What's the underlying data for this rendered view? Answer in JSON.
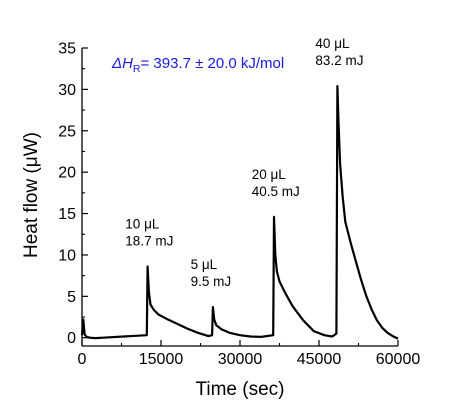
{
  "chart_data": {
    "type": "line",
    "xlabel": "Time (sec)",
    "ylabel": "Heat flow (μW)",
    "xlim": [
      0,
      60000
    ],
    "ylim": [
      -1,
      35
    ],
    "xticks": [
      0,
      15000,
      30000,
      45000,
      60000
    ],
    "yticks": [
      0,
      5,
      10,
      15,
      20,
      25,
      30,
      35
    ],
    "grid": false,
    "legend": "none",
    "series": [
      {
        "color": "#000000",
        "x": [
          0,
          250,
          500,
          900,
          1500,
          2500,
          4000,
          12300,
          12450,
          12700,
          13000,
          13600,
          14500,
          16000,
          18000,
          20000,
          22000,
          24000,
          24700,
          24850,
          25100,
          25500,
          26500,
          28000,
          30000,
          32000,
          34000,
          36300,
          36450,
          36700,
          37000,
          37500,
          38500,
          40000,
          42000,
          44000,
          46000,
          47500,
          48300,
          48500,
          48700,
          49000,
          49500,
          50000,
          51000,
          52000,
          53000,
          54000,
          55000,
          56000,
          57000,
          58000,
          59000,
          60000
        ],
        "y": [
          0.3,
          2.2,
          0.4,
          0.1,
          0.0,
          -0.05,
          0.0,
          0.3,
          8.6,
          5.5,
          4.0,
          3.4,
          2.8,
          2.3,
          1.7,
          1.1,
          0.6,
          0.2,
          0.3,
          3.7,
          2.2,
          1.5,
          1.0,
          0.6,
          0.3,
          0.15,
          0.1,
          0.3,
          14.6,
          10.0,
          8.0,
          6.8,
          5.5,
          3.8,
          2.1,
          0.8,
          0.3,
          0.15,
          0.5,
          30.4,
          26.0,
          21.0,
          17.0,
          14.0,
          11.5,
          9.2,
          7.0,
          5.0,
          3.4,
          2.1,
          1.2,
          0.6,
          0.2,
          -0.1
        ]
      }
    ],
    "annotations": [
      {
        "lines": [
          "10 μL",
          "18.7 mJ"
        ],
        "x": 12400,
        "y": 8.6
      },
      {
        "lines": [
          "5 μL",
          "9.5 mJ"
        ],
        "x": 24800,
        "y": 3.7
      },
      {
        "lines": [
          "20 μL",
          "40.5 mJ"
        ],
        "x": 36400,
        "y": 14.6
      },
      {
        "lines": [
          "40 μL",
          "83.2 mJ"
        ],
        "x": 48500,
        "y": 30.4
      }
    ],
    "enthalpy_label": {
      "symbol": "ΔH",
      "subscript": "R",
      "value": "= 393.7 ± 20.0 kJ/mol",
      "color": "#1a1adc"
    }
  }
}
